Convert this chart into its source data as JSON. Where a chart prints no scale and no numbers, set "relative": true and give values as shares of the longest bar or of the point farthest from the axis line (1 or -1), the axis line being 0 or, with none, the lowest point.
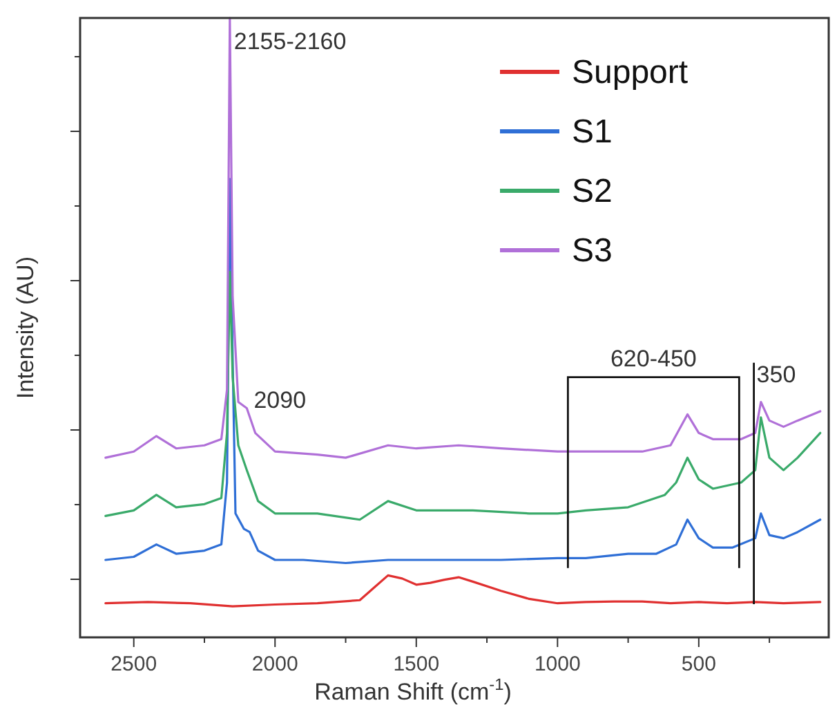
{
  "chart_data": {
    "type": "line",
    "relative": true,
    "xlabel": "Raman Shift (cm$^{-1}$)",
    "ylabel": "Intensity (AU)",
    "xlim": [
      2690,
      40
    ],
    "xticks": [
      2500,
      {
        "value": 2250,
        "label": null
      },
      2000,
      {
        "value": 1750,
        "label": null
      },
      1500,
      {
        "value": 1250,
        "label": null
      },
      1000,
      {
        "value": 750,
        "label": null
      },
      500,
      {
        "value": 250,
        "label": null
      }
    ],
    "legend": "top right",
    "grid": false,
    "annotations": [
      {
        "text": "2155-2160",
        "x": 2160,
        "y": 0.95
      },
      {
        "text": "2090",
        "x": 2090,
        "y": 0.37
      },
      "620-450",
      "350"
    ],
    "series": [
      {
        "name": "Support",
        "color": "#e03030",
        "x": [
          2600,
          2450,
          2300,
          2150,
          2000,
          1850,
          1700,
          1650,
          1600,
          1550,
          1500,
          1450,
          1400,
          1350,
          1300,
          1200,
          1100,
          1000,
          900,
          800,
          700,
          600,
          500,
          400,
          300,
          200,
          70
        ],
        "values": [
          0.055,
          0.057,
          0.055,
          0.05,
          0.053,
          0.055,
          0.06,
          0.08,
          0.1,
          0.095,
          0.085,
          0.088,
          0.093,
          0.097,
          0.09,
          0.075,
          0.062,
          0.055,
          0.057,
          0.058,
          0.058,
          0.055,
          0.057,
          0.055,
          0.057,
          0.055,
          0.057
        ]
      },
      {
        "name": "S1",
        "color": "#2f6fd6",
        "x": [
          2600,
          2500,
          2420,
          2350,
          2250,
          2190,
          2170,
          2160,
          2150,
          2140,
          2110,
          2090,
          2060,
          2000,
          1900,
          1750,
          1600,
          1500,
          1400,
          1200,
          1000,
          900,
          750,
          650,
          580,
          540,
          500,
          450,
          380,
          300,
          280,
          250,
          200,
          150,
          70
        ],
        "values": [
          0.125,
          0.13,
          0.15,
          0.135,
          0.14,
          0.15,
          0.25,
          0.74,
          0.45,
          0.2,
          0.175,
          0.17,
          0.14,
          0.125,
          0.125,
          0.12,
          0.125,
          0.125,
          0.125,
          0.125,
          0.128,
          0.128,
          0.135,
          0.135,
          0.15,
          0.19,
          0.16,
          0.145,
          0.145,
          0.16,
          0.2,
          0.165,
          0.16,
          0.17,
          0.19
        ]
      },
      {
        "name": "S2",
        "color": "#3aaa6a",
        "x": [
          2600,
          2500,
          2420,
          2350,
          2250,
          2190,
          2170,
          2160,
          2150,
          2130,
          2100,
          2060,
          2000,
          1850,
          1700,
          1600,
          1500,
          1300,
          1100,
          1000,
          900,
          750,
          620,
          580,
          540,
          500,
          450,
          350,
          300,
          280,
          250,
          200,
          150,
          70
        ],
        "values": [
          0.196,
          0.205,
          0.23,
          0.21,
          0.215,
          0.225,
          0.33,
          0.59,
          0.42,
          0.31,
          0.27,
          0.22,
          0.2,
          0.2,
          0.19,
          0.22,
          0.205,
          0.205,
          0.2,
          0.2,
          0.205,
          0.21,
          0.23,
          0.25,
          0.29,
          0.255,
          0.24,
          0.25,
          0.27,
          0.355,
          0.29,
          0.27,
          0.29,
          0.33
        ]
      },
      {
        "name": "S3",
        "color": "#b070d8",
        "x": [
          2600,
          2500,
          2420,
          2350,
          2250,
          2190,
          2170,
          2160,
          2150,
          2130,
          2100,
          2070,
          2000,
          1850,
          1750,
          1600,
          1500,
          1350,
          1200,
          1000,
          850,
          700,
          600,
          540,
          500,
          450,
          350,
          300,
          280,
          250,
          200,
          150,
          70
        ],
        "values": [
          0.29,
          0.3,
          0.325,
          0.305,
          0.31,
          0.32,
          0.4,
          1.0,
          0.55,
          0.38,
          0.37,
          0.33,
          0.3,
          0.295,
          0.29,
          0.31,
          0.305,
          0.31,
          0.305,
          0.3,
          0.3,
          0.3,
          0.31,
          0.36,
          0.33,
          0.32,
          0.32,
          0.33,
          0.38,
          0.35,
          0.34,
          0.35,
          0.365
        ]
      }
    ]
  }
}
